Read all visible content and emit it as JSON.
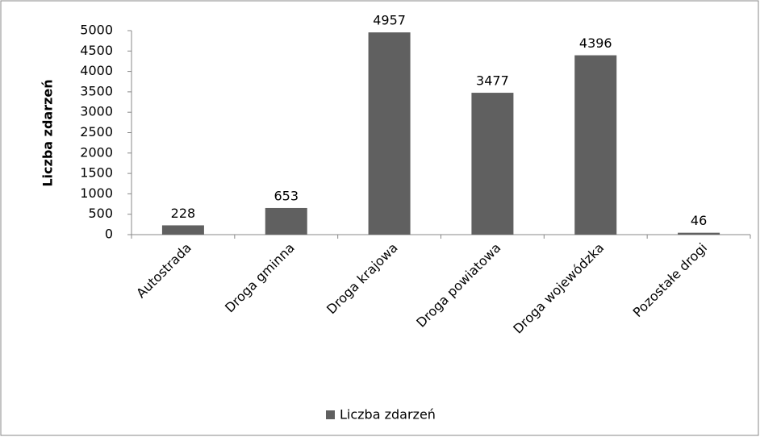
{
  "chart_data": {
    "type": "bar",
    "y_label": "Liczba zdarzeń",
    "categories": [
      "Autostrada",
      "Droga gminna",
      "Droga krajowa",
      "Droga powiatowa",
      "Droga wojewódzka",
      "Pozostałe drogi"
    ],
    "series": [
      {
        "name": "Liczba zdarzeń",
        "color": "#606060",
        "values": [
          228,
          653,
          4957,
          3477,
          4396,
          46
        ]
      }
    ],
    "ylim": [
      0,
      5000
    ],
    "yticks": [
      0,
      500,
      1000,
      1500,
      2000,
      2500,
      3000,
      3500,
      4000,
      4500,
      5000
    ],
    "grid": false,
    "legend": "bottom"
  }
}
